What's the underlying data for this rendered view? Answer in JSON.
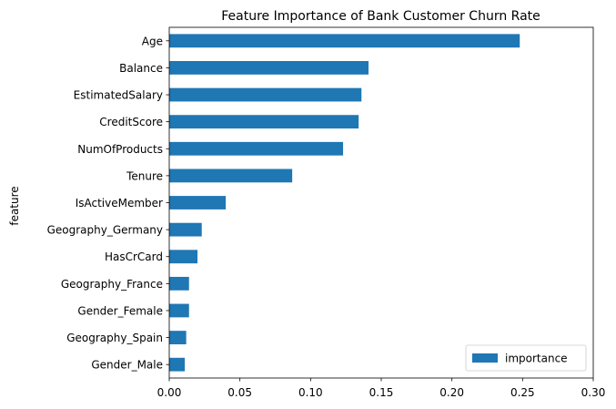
{
  "chart_data": {
    "type": "bar",
    "orientation": "horizontal",
    "title": "Feature Importance of Bank Customer Churn Rate",
    "xlabel": "",
    "ylabel": "feature",
    "xlim": [
      0,
      0.3
    ],
    "xticks": [
      "0.00",
      "0.05",
      "0.10",
      "0.15",
      "0.20",
      "0.25",
      "0.30"
    ],
    "grid": false,
    "legend_position": "bottom-right",
    "categories": [
      "Age",
      "Balance",
      "EstimatedSalary",
      "CreditScore",
      "NumOfProducts",
      "Tenure",
      "IsActiveMember",
      "Geography_Germany",
      "HasCrCard",
      "Geography_France",
      "Gender_Female",
      "Geography_Spain",
      "Gender_Male"
    ],
    "series": [
      {
        "name": "importance",
        "color": "#1f77b4",
        "values": [
          0.248,
          0.141,
          0.136,
          0.134,
          0.123,
          0.087,
          0.04,
          0.023,
          0.02,
          0.014,
          0.014,
          0.012,
          0.011
        ]
      }
    ]
  }
}
